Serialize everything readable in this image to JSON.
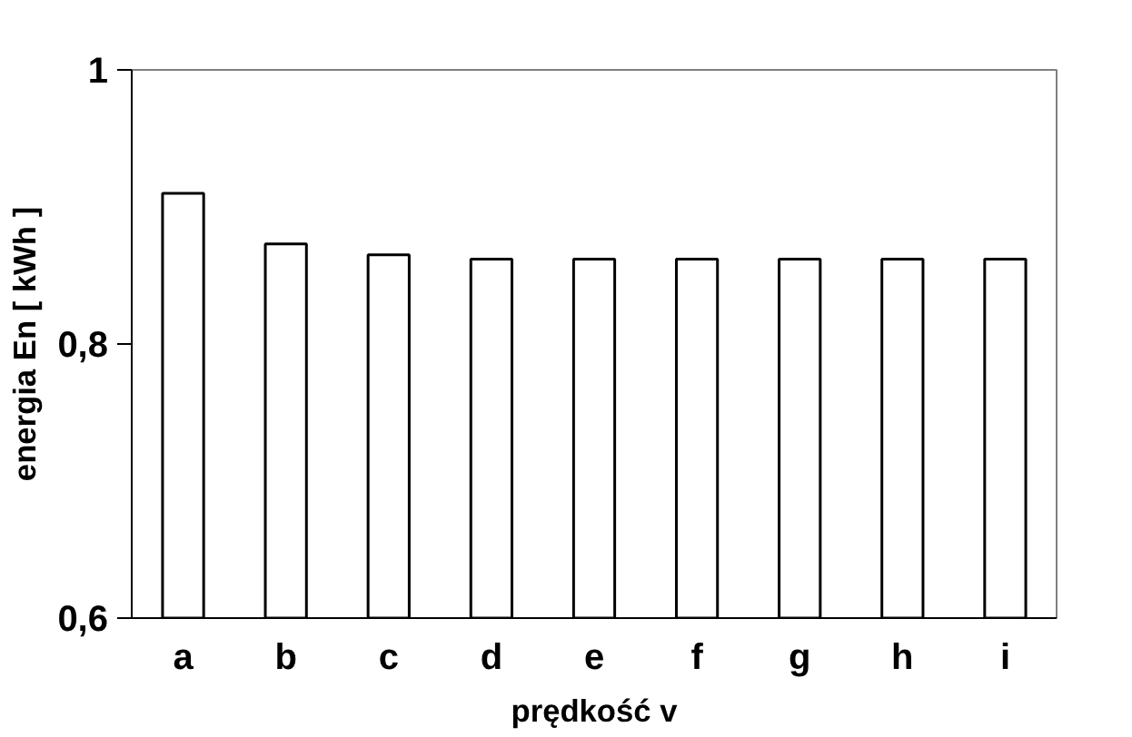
{
  "chart_data": {
    "type": "bar",
    "xlabel": "prędkość v",
    "ylabel": "energia En [ kWh ]",
    "categories": [
      "a",
      "b",
      "c",
      "d",
      "e",
      "f",
      "g",
      "h",
      "i"
    ],
    "values": [
      0.91,
      0.873,
      0.865,
      0.862,
      0.862,
      0.862,
      0.862,
      0.862,
      0.862
    ],
    "color": "#ffffff",
    "ylim": [
      0.6,
      1
    ],
    "yticks": [
      {
        "value": 0.6,
        "label": "0,6"
      },
      {
        "value": 0.8,
        "label": "0,8"
      },
      {
        "value": 1,
        "label": "1"
      }
    ],
    "grid": false
  }
}
